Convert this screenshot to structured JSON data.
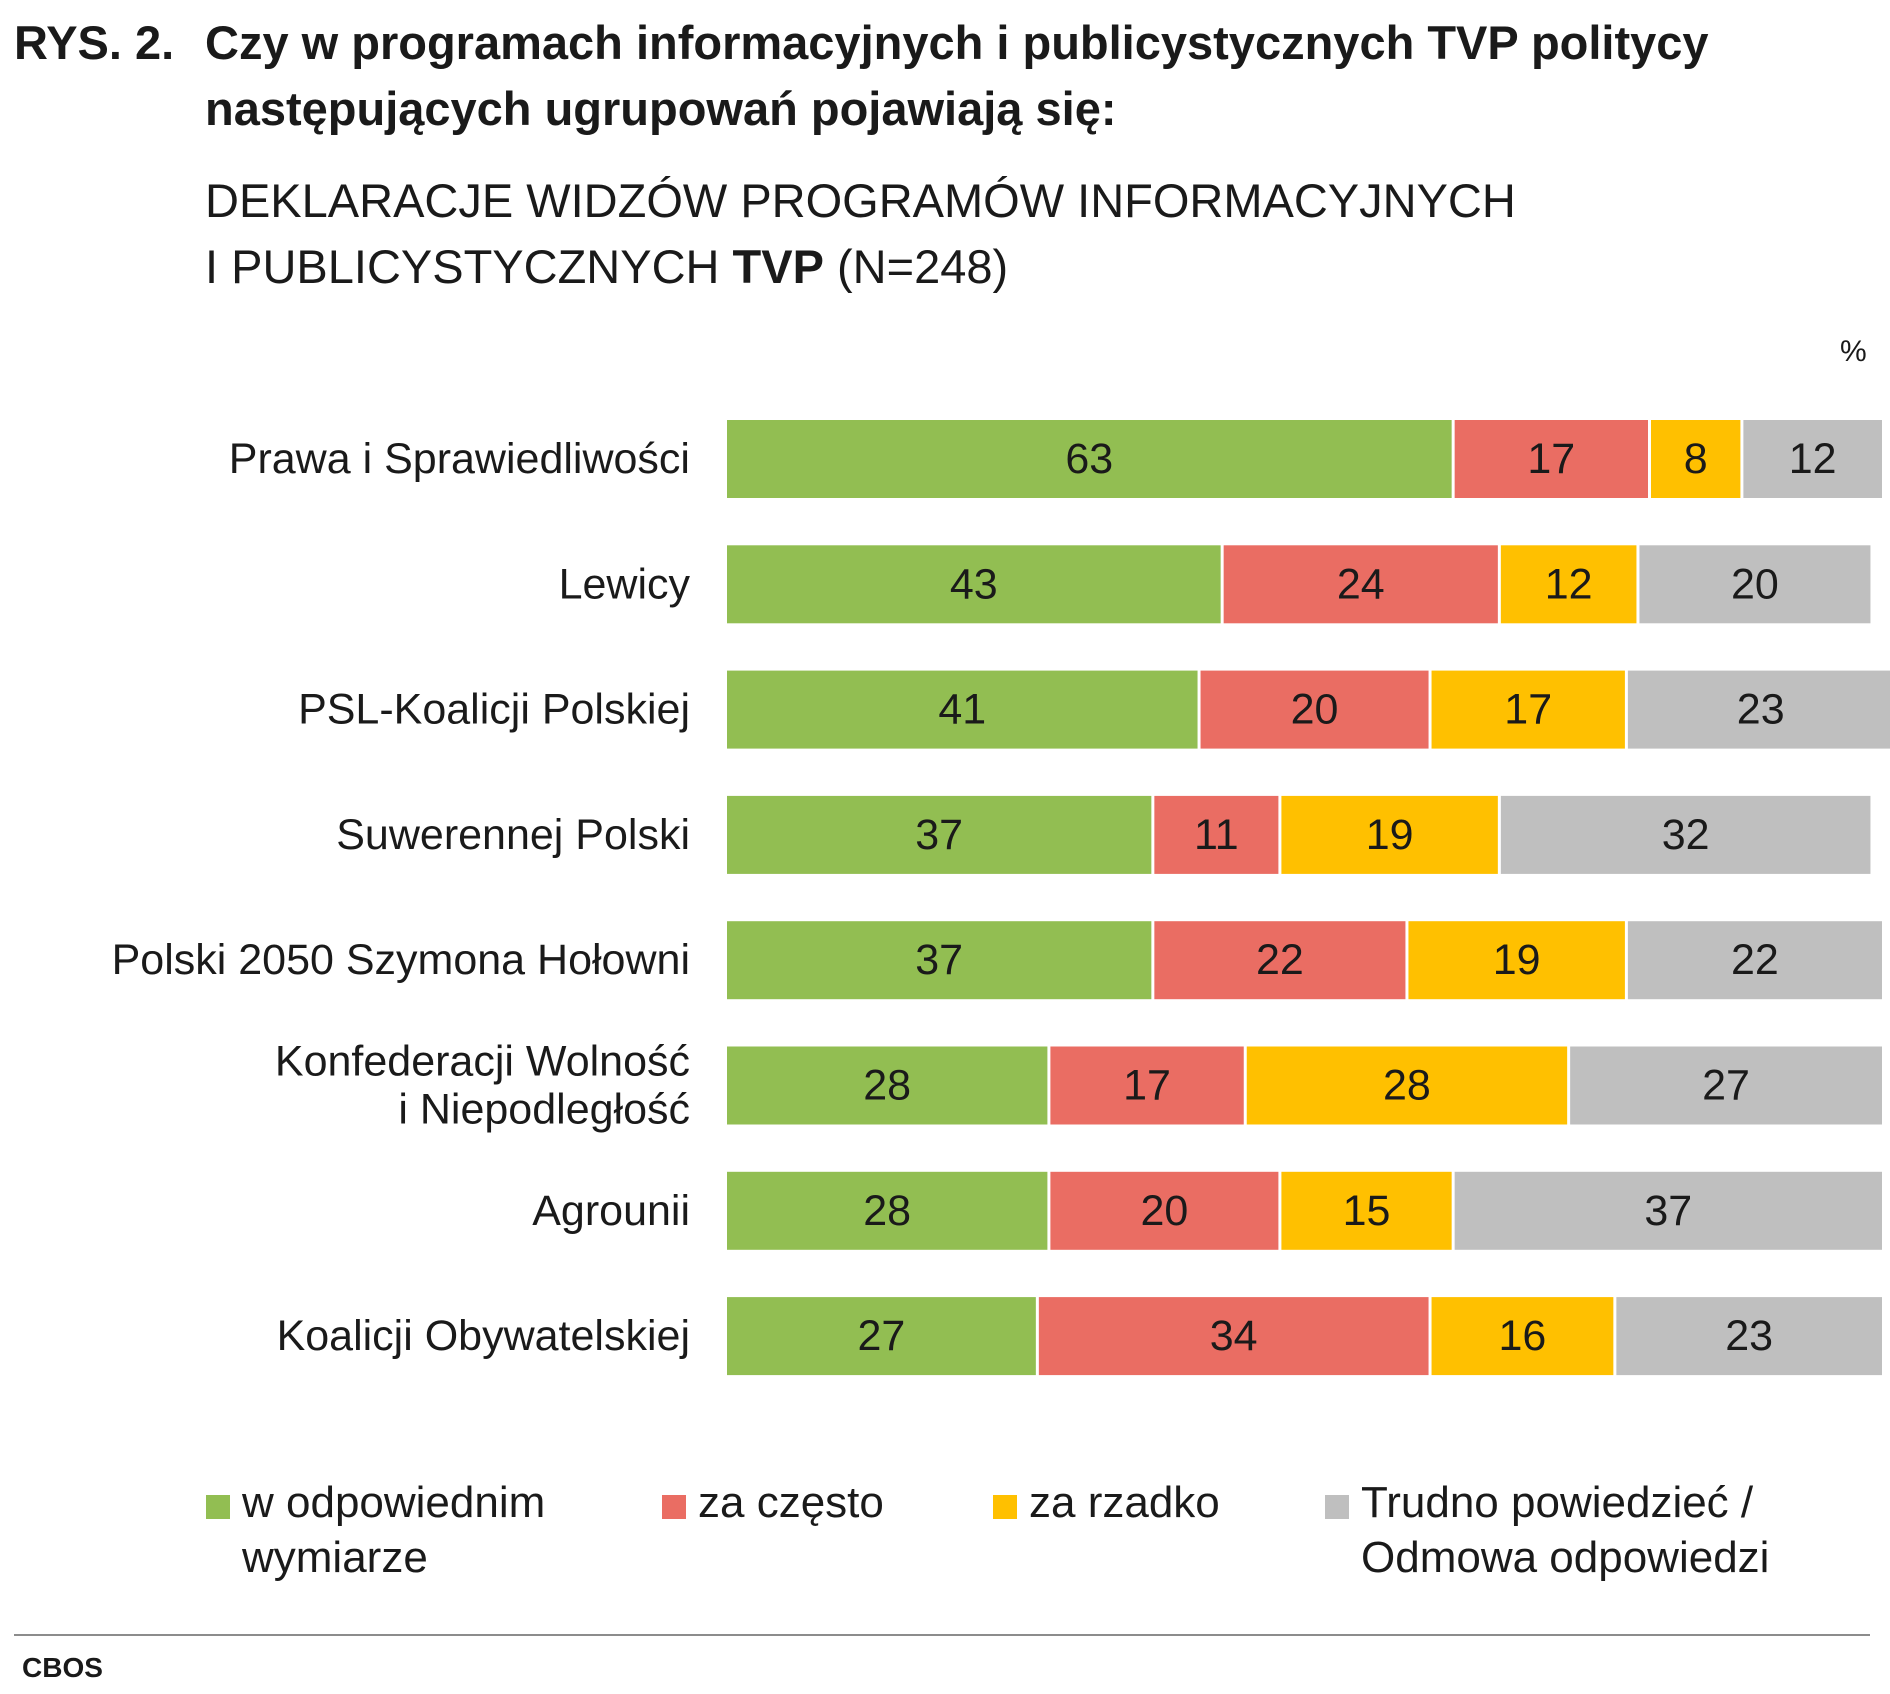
{
  "header": {
    "figure_number": "RYS. 2.",
    "question": "Czy w programach informacyjnych i publicystycznych TVP politycy następujących ugrupowań pojawiają się:",
    "subtitle_line1": "DEKLARACJE WIDZÓW PROGRAMÓW INFORMACYJNYCH",
    "subtitle_line2_pre": "I PUBLICYSTYCZNYCH ",
    "subtitle_line2_bold": "TVP",
    "subtitle_line2_post": " (N=248)"
  },
  "unit_label": "%",
  "source": "CBOS",
  "chart_data": {
    "type": "bar",
    "orientation": "horizontal",
    "stacked": true,
    "categories": [
      [
        "Prawa i Sprawiedliwości"
      ],
      [
        "Lewicy"
      ],
      [
        "PSL-Koalicji Polskiej"
      ],
      [
        "Suwerennej Polski"
      ],
      [
        "Polski 2050 Szymona Hołowni"
      ],
      [
        "Konfederacji Wolność",
        "i Niepodległość"
      ],
      [
        "Agrounii"
      ],
      [
        "Koalicji Obywatelskiej"
      ]
    ],
    "series": [
      {
        "name": "w odpowiednim wymiarze",
        "legend_lines": [
          "w odpowiednim",
          "wymiarze"
        ],
        "color": "#92BE52",
        "values": [
          63,
          43,
          41,
          37,
          37,
          28,
          28,
          27
        ]
      },
      {
        "name": "za często",
        "legend_lines": [
          "za często"
        ],
        "color": "#EA6D63",
        "values": [
          17,
          24,
          20,
          11,
          22,
          17,
          20,
          34
        ]
      },
      {
        "name": "za rzadko",
        "legend_lines": [
          "za rzadko"
        ],
        "color": "#FFC000",
        "values": [
          8,
          12,
          17,
          19,
          19,
          28,
          15,
          16
        ]
      },
      {
        "name": "Trudno powiedzieć / Odmowa odpowiedzi",
        "legend_lines": [
          "Trudno powiedzieć /",
          "Odmowa odpowiedzi"
        ],
        "color": "#BFBFBF",
        "values": [
          12,
          20,
          23,
          32,
          22,
          27,
          37,
          23
        ]
      }
    ],
    "xlim": [
      0,
      100
    ],
    "data_labels": true,
    "grid": false,
    "legend_position": "bottom"
  }
}
